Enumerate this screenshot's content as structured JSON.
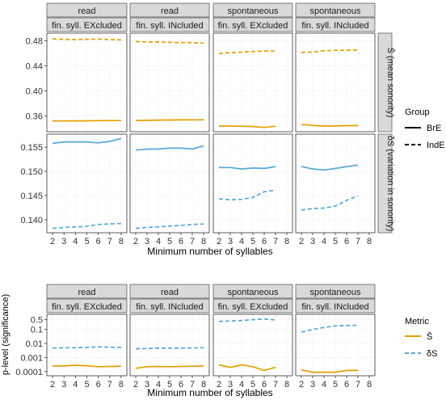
{
  "figure": {
    "top_xlabel": "Minimum number of syllables",
    "bottom_xlabel": "Minimum number of syllables",
    "bottom_ylabel": "p-level (significance)",
    "top_row_strips": [
      "(mean sonority)",
      "(variation in sonority)"
    ],
    "top_row_strip_symbols": [
      "S̄",
      "δS"
    ],
    "legend_group": {
      "title": "Group",
      "items": [
        "BrE",
        "IndE"
      ]
    },
    "legend_metric": {
      "title": "Metric",
      "items": [
        "S̄",
        "δS"
      ]
    },
    "colors": {
      "orange": "#e69f00",
      "blue": "#56a8d9",
      "strip_bg": "#d9d9d9",
      "panel_border": "#333333",
      "grid": "#ebebeb"
    }
  },
  "chart_data": [
    {
      "type": "line",
      "name": "top-row-mean-sonority",
      "facets": [
        {
          "col1": "read",
          "col2": "fin. syll. EXcluded"
        },
        {
          "col1": "read",
          "col2": "fin. syll. INcluded"
        },
        {
          "col1": "spontaneous",
          "col2": "fin. syll. EXcluded"
        },
        {
          "col1": "spontaneous",
          "col2": "fin. syll. INcluded"
        }
      ],
      "x": [
        2,
        3,
        4,
        5,
        6,
        7,
        8
      ],
      "xlim": [
        1.5,
        8.5
      ],
      "ylim": [
        0.335,
        0.492
      ],
      "yticks": [
        0.36,
        0.4,
        0.44,
        0.48
      ],
      "ytick_labels": [
        "0.36",
        "0.40",
        "0.44",
        "0.48"
      ],
      "series": [
        {
          "name": "BrE",
          "linestyle": "solid",
          "color": "#e69f00",
          "values": [
            [
              0.3523,
              0.3523,
              0.3523,
              0.3524,
              0.3526,
              0.3527,
              0.3527
            ],
            [
              0.3528,
              0.3532,
              0.3535,
              0.3536,
              0.3538,
              0.3539,
              0.3539
            ],
            [
              0.3442,
              0.344,
              0.3438,
              0.3433,
              0.3418,
              0.3437,
              null
            ],
            [
              0.3468,
              0.3448,
              0.3442,
              0.3442,
              0.3446,
              0.3448,
              null
            ]
          ]
        },
        {
          "name": "IndE",
          "linestyle": "dashed",
          "color": "#e69f00",
          "values": [
            [
              0.4828,
              0.4822,
              0.4818,
              0.4824,
              0.4826,
              0.4819,
              0.4812
            ],
            [
              0.4786,
              0.478,
              0.4778,
              0.4774,
              0.477,
              0.4768,
              0.4762
            ],
            [
              0.4596,
              0.4608,
              0.4618,
              0.4628,
              0.4633,
              0.4638,
              null
            ],
            [
              0.4612,
              0.4618,
              0.4638,
              0.4644,
              0.465,
              0.465,
              null
            ]
          ]
        }
      ]
    },
    {
      "type": "line",
      "name": "top-row-variation-in-sonority",
      "x": [
        2,
        3,
        4,
        5,
        6,
        7,
        8
      ],
      "xlim": [
        1.5,
        8.5
      ],
      "xticks": [
        2,
        3,
        4,
        5,
        6,
        7,
        8
      ],
      "ylim": [
        0.1373,
        0.1577
      ],
      "yticks": [
        0.14,
        0.145,
        0.15,
        0.155
      ],
      "ytick_labels": [
        "0.140",
        "0.145",
        "0.150",
        "0.155"
      ],
      "series": [
        {
          "name": "BrE",
          "linestyle": "solid",
          "color": "#56a8d9",
          "values": [
            [
              0.1558,
              0.1561,
              0.1561,
              0.1561,
              0.1559,
              0.1562,
              0.1568
            ],
            [
              0.1544,
              0.1546,
              0.1546,
              0.1548,
              0.1548,
              0.1546,
              0.1553
            ],
            [
              0.1508,
              0.1508,
              0.1505,
              0.1507,
              0.1506,
              0.151,
              null
            ],
            [
              0.151,
              0.1505,
              0.1503,
              0.1506,
              0.151,
              0.1513,
              null
            ]
          ]
        },
        {
          "name": "IndE",
          "linestyle": "dashed",
          "color": "#56a8d9",
          "values": [
            [
              0.1382,
              0.1384,
              0.1385,
              0.1386,
              0.139,
              0.1391,
              0.1392
            ],
            [
              0.1382,
              0.1384,
              0.1385,
              0.1387,
              0.1388,
              0.139,
              0.1391
            ],
            [
              0.1443,
              0.1441,
              0.1442,
              0.1446,
              0.1458,
              0.1461,
              null
            ],
            [
              0.142,
              0.1423,
              0.1424,
              0.1428,
              0.144,
              0.1449,
              null
            ]
          ]
        }
      ]
    },
    {
      "type": "line",
      "name": "bottom-row-significance",
      "facets": [
        {
          "col1": "read",
          "col2": "fin. syll. EXcluded"
        },
        {
          "col1": "read",
          "col2": "fin. syll. INcluded"
        },
        {
          "col1": "spontaneous",
          "col2": "fin. syll. EXcluded"
        },
        {
          "col1": "spontaneous",
          "col2": "fin. syll. INcluded"
        }
      ],
      "x": [
        2,
        3,
        4,
        5,
        6,
        7,
        8
      ],
      "xlim": [
        1.5,
        8.5
      ],
      "xticks": [
        2,
        3,
        4,
        5,
        6,
        7,
        8
      ],
      "yscale": "log",
      "ylim": [
        5e-05,
        1.2
      ],
      "yticks": [
        0.0001,
        0.001,
        0.01,
        0.1,
        0.5
      ],
      "ytick_labels": [
        "0.0001",
        "0.001",
        "0.01",
        "0.1",
        "0.5"
      ],
      "series": [
        {
          "name": "S̄",
          "linestyle": "solid",
          "color": "#e69f00",
          "values": [
            [
              0.00025,
              0.00025,
              0.00028,
              0.00026,
              0.00022,
              0.00023,
              0.00024
            ],
            [
              0.00017,
              0.00022,
              0.00023,
              0.00022,
              0.00023,
              0.00024,
              0.00025
            ],
            [
              0.0003,
              0.0002,
              0.0003,
              0.00022,
              0.00012,
              0.0002,
              null
            ],
            [
              0.00013,
              9e-05,
              9e-05,
              9e-05,
              0.00012,
              0.00012,
              null
            ]
          ]
        },
        {
          "name": "δS",
          "linestyle": "dashed",
          "color": "#56a8d9",
          "values": [
            [
              0.0048,
              0.005,
              0.005,
              0.0052,
              0.0058,
              0.0055,
              0.0053
            ],
            [
              0.0042,
              0.0044,
              0.0046,
              0.0046,
              0.0046,
              0.0048,
              0.005
            ],
            [
              0.38,
              0.4,
              0.44,
              0.5,
              0.56,
              0.48,
              null
            ],
            [
              0.065,
              0.1,
              0.14,
              0.18,
              0.19,
              0.2,
              null
            ]
          ]
        }
      ]
    }
  ]
}
